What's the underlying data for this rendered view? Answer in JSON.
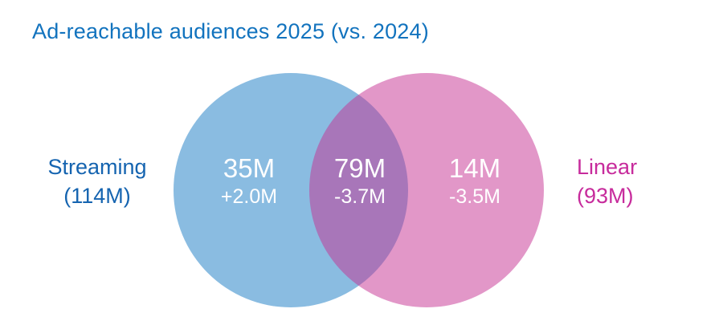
{
  "title": "Ad-reachable audiences 2025 (vs. 2024)",
  "colors": {
    "background_color": "#FFFFFF",
    "title_color": "#1273BE",
    "streaming_label_color": "#1564B0",
    "linear_label_color": "#C72B9C",
    "streaming_circle_fill": "#1579C380",
    "linear_circle_fill": "#C52F9280",
    "region_text_color": "#FFFFFF"
  },
  "set_labels": {
    "streaming": {
      "name": "Streaming",
      "total": "(114M)"
    },
    "linear": {
      "name": "Linear",
      "total": "(93M)"
    }
  },
  "regions": {
    "streaming_only": {
      "value": "35M",
      "delta": "+2.0M"
    },
    "overlap": {
      "value": "79M",
      "delta": "-3.7M"
    },
    "linear_only": {
      "value": "14M",
      "delta": "-3.5M"
    }
  },
  "chart_data": {
    "type": "venn",
    "title": "Ad-reachable audiences 2025 (vs. 2024)",
    "value_suffix": "M",
    "sets": [
      {
        "label": "Streaming",
        "total": 114,
        "exclusive": 35,
        "exclusive_delta_vs_2024": 2.0
      },
      {
        "label": "Linear",
        "total": 93,
        "exclusive": 14,
        "exclusive_delta_vs_2024": -3.5
      }
    ],
    "intersection": {
      "value": 79,
      "delta_vs_2024": -3.7
    }
  }
}
